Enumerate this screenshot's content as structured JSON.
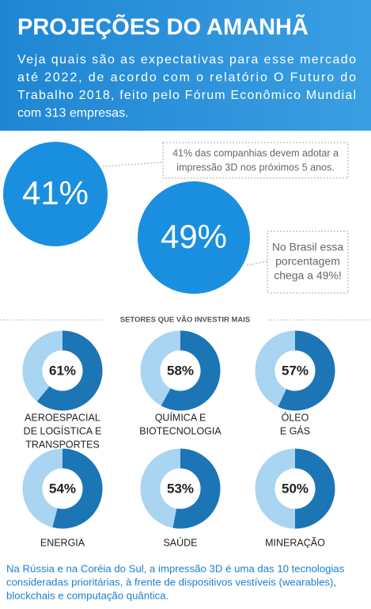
{
  "header": {
    "title": "PROJEÇÕES DO AMANHÃ",
    "lines": [
      "Veja quais são as expectativas para esse mercado",
      "até 2022, de acordo com o relatório O Futuro do",
      "Trabalho 2018, feito pelo Fórum Econômico Mundial",
      "com 313 empresas."
    ]
  },
  "stats": [
    {
      "value_label": "41%",
      "note": [
        "41% das companhias devem adotar a",
        "impressão 3D nos próximos 5 anos."
      ]
    },
    {
      "value_label": "49%",
      "note": [
        "No Brasil essa",
        "porcentagem",
        "chega a 49%!"
      ]
    }
  ],
  "sectors_title": "SETORES QUE VÃO INVESTIR MAIS",
  "sectors": [
    {
      "value": 61,
      "value_label": "61%",
      "label": [
        "AEROESPACIAL",
        "DE LOGÍSTICA E",
        "TRANSPORTES"
      ]
    },
    {
      "value": 58,
      "value_label": "58%",
      "label": [
        "QUÍMICA E",
        "BIOTECNOLOGIA"
      ]
    },
    {
      "value": 57,
      "value_label": "57%",
      "label": [
        "ÓLEO",
        "E GÁS"
      ]
    },
    {
      "value": 54,
      "value_label": "54%",
      "label": [
        "ENERGIA"
      ]
    },
    {
      "value": 53,
      "value_label": "53%",
      "label": [
        "SAÚDE"
      ]
    },
    {
      "value": 50,
      "value_label": "50%",
      "label": [
        "MINERAÇÃO"
      ]
    }
  ],
  "footer": [
    "Na Rússia e na Coréia do Sul, a impressão 3D é uma das 10 tecnologias",
    "consideradas prioritárias, à frente de dispositivos vestíveis (wearables),",
    "blockchais e computação quântica."
  ]
}
